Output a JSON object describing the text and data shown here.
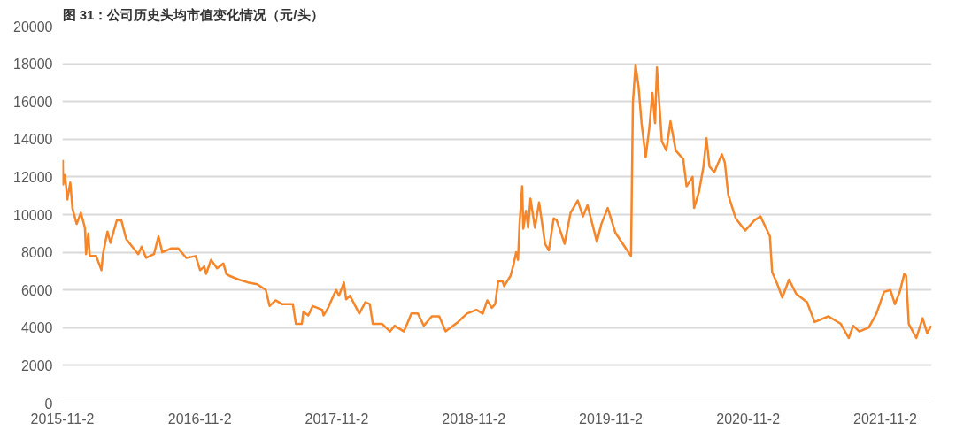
{
  "chart_data": {
    "type": "line",
    "title": "图 31：公司历史头均市值变化情况（元/头）",
    "x": [
      "2015-11-03",
      "2015-11-04",
      "2015-11-09",
      "2015-11-15",
      "2015-11-23",
      "2015-11-29",
      "2015-12-10",
      "2015-12-21",
      "2016-01-01",
      "2016-01-04",
      "2016-01-10",
      "2016-01-14",
      "2016-01-31",
      "2016-02-14",
      "2016-02-18",
      "2016-03-01",
      "2016-03-09",
      "2016-03-26",
      "2016-04-07",
      "2016-04-20",
      "2016-05-06",
      "2016-05-22",
      "2016-05-31",
      "2016-06-12",
      "2016-07-03",
      "2016-07-15",
      "2016-07-25",
      "2016-08-17",
      "2016-09-06",
      "2016-09-27",
      "2016-10-22",
      "2016-11-03",
      "2016-11-14",
      "2016-11-19",
      "2016-12-02",
      "2016-12-18",
      "2017-01-04",
      "2017-01-12",
      "2017-01-20",
      "2017-02-14",
      "2017-03-10",
      "2017-04-04",
      "2017-04-27",
      "2017-05-07",
      "2017-05-23",
      "2017-06-09",
      "2017-07-08",
      "2017-07-16",
      "2017-08-01",
      "2017-08-05",
      "2017-08-18",
      "2017-08-30",
      "2017-09-24",
      "2017-09-28",
      "2017-10-10",
      "2017-10-14",
      "2017-10-31",
      "2017-11-08",
      "2017-11-21",
      "2017-11-27",
      "2017-12-07",
      "2018-01-01",
      "2018-01-17",
      "2018-01-29",
      "2018-02-06",
      "2018-03-03",
      "2018-03-24",
      "2018-04-05",
      "2018-04-30",
      "2018-05-20",
      "2018-06-06",
      "2018-06-22",
      "2018-07-13",
      "2018-08-02",
      "2018-08-19",
      "2018-09-21",
      "2018-10-15",
      "2018-11-09",
      "2018-11-26",
      "2018-12-08",
      "2018-12-20",
      "2018-12-29",
      "2019-01-06",
      "2019-01-18",
      "2019-01-22",
      "2019-02-08",
      "2019-02-16",
      "2019-02-23",
      "2019-02-28",
      "2019-03-04",
      "2019-03-11",
      "2019-03-14",
      "2019-03-21",
      "2019-03-27",
      "2019-04-02",
      "2019-04-14",
      "2019-04-25",
      "2019-05-11",
      "2019-05-21",
      "2019-06-03",
      "2019-06-11",
      "2019-07-02",
      "2019-07-18",
      "2019-08-06",
      "2019-08-20",
      "2019-09-01",
      "2019-09-14",
      "2019-09-26",
      "2019-10-08",
      "2019-10-25",
      "2019-11-14",
      "2019-12-09",
      "2019-12-26",
      "2019-12-31",
      "2020-01-07",
      "2020-01-15",
      "2020-01-23",
      "2020-02-03",
      "2020-02-13",
      "2020-02-21",
      "2020-02-28",
      "2020-03-04",
      "2020-03-17",
      "2020-03-29",
      "2020-04-09",
      "2020-04-23",
      "2020-05-13",
      "2020-05-22",
      "2020-06-07",
      "2020-06-11",
      "2020-06-24",
      "2020-07-06",
      "2020-07-14",
      "2020-07-22",
      "2020-08-04",
      "2020-08-24",
      "2020-09-01",
      "2020-09-10",
      "2020-09-30",
      "2020-10-25",
      "2020-11-19",
      "2020-12-05",
      "2020-12-30",
      "2021-01-05",
      "2021-01-19",
      "2021-02-01",
      "2021-02-19",
      "2021-03-10",
      "2021-04-08",
      "2021-04-28",
      "2021-06-04",
      "2021-07-07",
      "2021-07-28",
      "2021-08-09",
      "2021-08-25",
      "2021-09-19",
      "2021-10-10",
      "2021-10-30",
      "2021-11-16",
      "2021-11-28",
      "2021-12-11",
      "2021-12-23",
      "2021-12-28",
      "2022-01-04",
      "2022-01-24",
      "2022-02-10",
      "2022-02-22",
      "2022-03-05"
    ],
    "series": [
      {
        "color": "#f5862a",
        "values": [
          12900,
          11600,
          12100,
          10800,
          11700,
          10300,
          9500,
          10100,
          9300,
          7900,
          9000,
          7800,
          7800,
          7050,
          7900,
          9100,
          8500,
          9700,
          9700,
          8700,
          8300,
          7900,
          8300,
          7700,
          7900,
          8850,
          8000,
          8200,
          8200,
          7700,
          7800,
          7050,
          7250,
          6850,
          7600,
          7150,
          7400,
          6850,
          6750,
          6550,
          6400,
          6300,
          6000,
          5150,
          5450,
          5250,
          5250,
          4200,
          4200,
          4850,
          4650,
          5150,
          4950,
          4650,
          5050,
          5250,
          6000,
          5700,
          6400,
          5500,
          5700,
          4750,
          5350,
          5250,
          4200,
          4200,
          3800,
          4100,
          3800,
          4750,
          4750,
          4100,
          4600,
          4600,
          3800,
          4300,
          4750,
          4950,
          4750,
          5450,
          5050,
          5250,
          6450,
          6450,
          6200,
          6750,
          7350,
          8000,
          7600,
          9500,
          11500,
          9250,
          10200,
          9300,
          10850,
          9300,
          10650,
          8450,
          8100,
          9800,
          9700,
          8450,
          10100,
          10750,
          9900,
          10500,
          9500,
          8550,
          9500,
          10350,
          9050,
          8300,
          7800,
          15950,
          17950,
          16800,
          14850,
          13050,
          14650,
          16450,
          14850,
          17800,
          13900,
          13400,
          14950,
          13400,
          12950,
          11500,
          12000,
          10350,
          11200,
          12550,
          14050,
          12550,
          12250,
          13200,
          12750,
          11050,
          9800,
          9150,
          9700,
          9900,
          8850,
          6950,
          6300,
          5600,
          6550,
          5800,
          5350,
          4300,
          4600,
          4200,
          3450,
          4100,
          3800,
          4000,
          4750,
          5900,
          6000,
          5250,
          5900,
          6850,
          6750,
          4200,
          3450,
          4500,
          3700,
          4100
        ]
      }
    ],
    "xlim": [
      "2015-11-02",
      "2022-03-06"
    ],
    "xticks": [
      {
        "value": "2015-11-02",
        "label": "2015-11-2"
      },
      {
        "value": "2016-11-02",
        "label": "2016-11-2"
      },
      {
        "value": "2017-11-02",
        "label": "2017-11-2"
      },
      {
        "value": "2018-11-02",
        "label": "2018-11-2"
      },
      {
        "value": "2019-11-02",
        "label": "2019-11-2"
      },
      {
        "value": "2020-11-02",
        "label": "2020-11-2"
      },
      {
        "value": "2021-11-02",
        "label": "2021-11-2"
      }
    ],
    "ylim": [
      0,
      20000
    ],
    "yticks": [
      0,
      2000,
      4000,
      6000,
      8000,
      10000,
      12000,
      14000,
      16000,
      18000,
      20000
    ],
    "grid": "y",
    "marker": "none",
    "line_style": "solid"
  }
}
